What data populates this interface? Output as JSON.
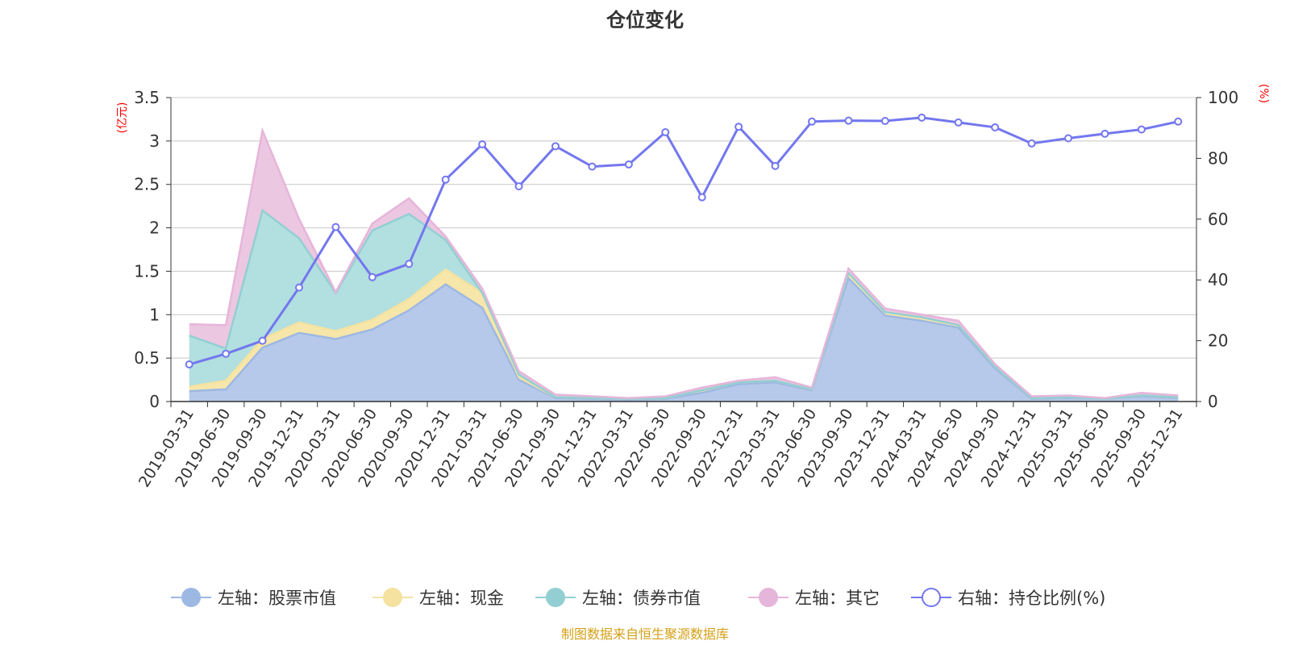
{
  "chart_data": {
    "type": "area",
    "title": "仓位变化",
    "left_axis_unit": "(亿元)",
    "right_axis_unit": "(%)",
    "left_ticks": [
      "0",
      "0.5",
      "1",
      "1.5",
      "2",
      "2.5",
      "3",
      "3.5"
    ],
    "right_ticks": [
      "0",
      "20",
      "40",
      "60",
      "80",
      "100"
    ],
    "ylim_left": [
      0,
      3.5
    ],
    "ylim_right": [
      0,
      100
    ],
    "grid": true,
    "legend_position": "bottom",
    "categories": [
      "2019-03-31",
      "2019-06-30",
      "2019-09-30",
      "2019-12-31",
      "2020-03-31",
      "2020-06-30",
      "2020-09-30",
      "2020-12-31",
      "2021-03-31",
      "2021-06-30",
      "2021-09-30",
      "2021-12-31",
      "2022-03-31",
      "2022-06-30",
      "2022-09-30",
      "2022-12-31",
      "2023-03-31",
      "2023-06-30",
      "2023-09-30",
      "2023-12-31",
      "2024-03-31",
      "2024-06-30",
      "2024-09-30",
      "2024-12-31",
      "2025-03-31",
      "2025-06-30",
      "2025-09-30",
      "2025-12-31"
    ],
    "stacked_series": [
      {
        "name": "左轴：股票市值",
        "color": "#9db8e2",
        "fill": "#b6c9ea",
        "values": [
          0.12,
          0.14,
          0.62,
          0.79,
          0.72,
          0.83,
          1.05,
          1.35,
          1.08,
          0.25,
          0.04,
          0.03,
          0.02,
          0.03,
          0.1,
          0.2,
          0.22,
          0.13,
          1.42,
          0.99,
          0.93,
          0.85,
          0.38,
          0.03,
          0.04,
          0.03,
          0.06,
          0.04
        ]
      },
      {
        "name": "左轴：现金",
        "color": "#f5e2a0",
        "fill": "#f7e6a9",
        "values": [
          0.05,
          0.1,
          0.1,
          0.12,
          0.09,
          0.11,
          0.13,
          0.17,
          0.17,
          0.03,
          0.01,
          0.01,
          0.01,
          0.01,
          0.03,
          0.02,
          0.02,
          0.01,
          0.06,
          0.04,
          0.04,
          0.03,
          0.02,
          0.01,
          0.01,
          0.0,
          0.01,
          0.01
        ]
      },
      {
        "name": "左轴：债券市值",
        "color": "#93cfd2",
        "fill": "#b2dfdf",
        "values": [
          0.59,
          0.37,
          1.48,
          0.97,
          0.44,
          1.03,
          0.98,
          0.34,
          0.0,
          0.03,
          0.0,
          0.0,
          0.0,
          0.0,
          0.0,
          0.0,
          0.0,
          0.0,
          0.0,
          0.0,
          0.0,
          0.0,
          0.0,
          0.0,
          0.0,
          0.0,
          0.0,
          0.0
        ]
      },
      {
        "name": "左轴：其它",
        "color": "#e6b5da",
        "fill": "#ecc7e1",
        "values": [
          0.13,
          0.27,
          0.92,
          0.22,
          0.01,
          0.08,
          0.18,
          0.04,
          0.05,
          0.04,
          0.03,
          0.02,
          0.01,
          0.02,
          0.03,
          0.02,
          0.04,
          0.02,
          0.05,
          0.04,
          0.03,
          0.05,
          0.03,
          0.02,
          0.02,
          0.01,
          0.03,
          0.02
        ]
      }
    ],
    "line_series": {
      "name": "右轴：持仓比例(%)",
      "color": "#7377ee",
      "values": [
        12.2,
        15.7,
        20.0,
        37.5,
        57.4,
        40.9,
        45.3,
        73.0,
        84.6,
        70.8,
        84.0,
        77.3,
        78.0,
        88.6,
        67.2,
        90.4,
        77.5,
        92.1,
        92.4,
        92.3,
        93.4,
        91.8,
        90.2,
        84.9,
        86.6,
        88.1,
        89.5,
        92.1
      ]
    },
    "source_note": "制图数据来自恒生聚源数据库"
  }
}
